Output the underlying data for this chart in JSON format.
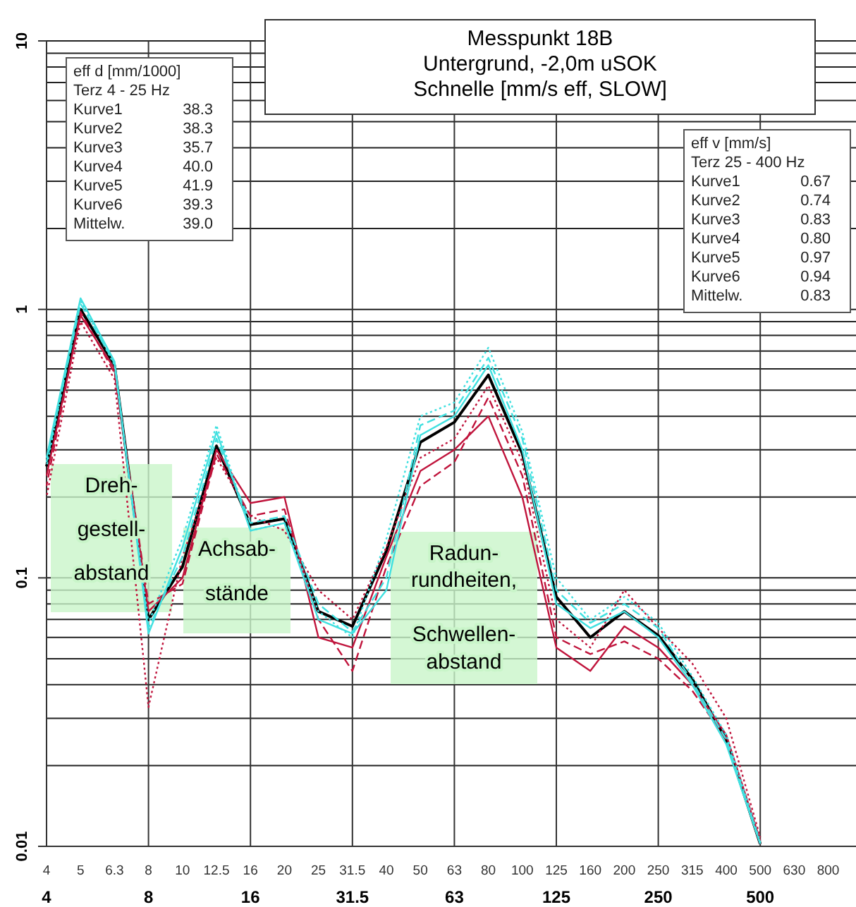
{
  "chart_data": {
    "type": "line",
    "title": "Messpunkt 18B",
    "subtitle": "Untergrund, -2,0m uSOK\nSchnelle [mm/s eff, SLOW]",
    "categories": [
      "4",
      "5",
      "6.3",
      "8",
      "10",
      "12.5",
      "16",
      "20",
      "25",
      "31.5",
      "40",
      "50",
      "63",
      "80",
      "100",
      "125",
      "160",
      "200",
      "250",
      "315",
      "400",
      "500",
      "630",
      "800"
    ],
    "log": "y",
    "ylim": [
      0.01,
      10
    ],
    "yticks": [
      0.01,
      0.1,
      1,
      10
    ],
    "grid": true,
    "marker": "none",
    "series": [
      {
        "color": "#000000",
        "line_style": "solid",
        "values": [
          0.26,
          1.0,
          0.62,
          0.07,
          0.11,
          0.31,
          0.158,
          0.166,
          0.075,
          0.066,
          0.126,
          0.32,
          0.38,
          0.57,
          0.29,
          0.085,
          0.06,
          0.075,
          0.061,
          0.042,
          0.025,
          0.0102,
          null,
          null
        ]
      },
      {
        "color": "#c0143c",
        "line_style": "solid",
        "values": [
          0.24,
          0.95,
          0.6,
          0.075,
          0.1,
          0.3,
          0.19,
          0.2,
          0.06,
          0.055,
          0.12,
          0.25,
          0.3,
          0.4,
          0.2,
          0.055,
          0.045,
          0.066,
          0.055,
          0.04,
          0.026,
          0.0105,
          null,
          null
        ]
      },
      {
        "color": "#c0143c",
        "line_style": "dashed",
        "values": [
          0.22,
          0.98,
          0.58,
          0.08,
          0.095,
          0.29,
          0.17,
          0.18,
          0.07,
          0.045,
          0.11,
          0.22,
          0.27,
          0.47,
          0.24,
          0.06,
          0.052,
          0.058,
          0.05,
          0.038,
          0.025,
          0.0102,
          null,
          null
        ]
      },
      {
        "color": "#c0143c",
        "line_style": "dotted",
        "values": [
          0.2,
          0.9,
          0.55,
          0.033,
          0.12,
          0.28,
          0.17,
          0.15,
          0.09,
          0.07,
          0.13,
          0.28,
          0.33,
          0.52,
          0.27,
          0.07,
          0.055,
          0.09,
          0.065,
          0.048,
          0.03,
          0.0108,
          null,
          null
        ]
      },
      {
        "color": "#40e0e0",
        "line_style": "solid",
        "values": [
          0.28,
          1.1,
          0.64,
          0.062,
          0.13,
          0.35,
          0.15,
          0.16,
          0.07,
          0.062,
          0.09,
          0.34,
          0.4,
          0.62,
          0.3,
          0.08,
          0.065,
          0.075,
          0.06,
          0.04,
          0.024,
          0.0102,
          null,
          null
        ]
      },
      {
        "color": "#40e0e0",
        "line_style": "dashed",
        "values": [
          0.27,
          1.05,
          0.63,
          0.065,
          0.12,
          0.33,
          0.16,
          0.17,
          0.08,
          0.063,
          0.1,
          0.37,
          0.42,
          0.66,
          0.33,
          0.09,
          0.068,
          0.08,
          0.065,
          0.041,
          0.025,
          0.0103,
          null,
          null
        ]
      },
      {
        "color": "#40e0e0",
        "line_style": "dotted",
        "values": [
          0.26,
          1.08,
          0.62,
          0.068,
          0.14,
          0.37,
          0.15,
          0.16,
          0.075,
          0.06,
          0.14,
          0.4,
          0.45,
          0.72,
          0.35,
          0.1,
          0.07,
          0.085,
          0.068,
          0.043,
          0.026,
          0.0104,
          null,
          null
        ]
      }
    ],
    "annotations": [
      "eff d [mm/1000]",
      "Terz 4 - 25 Hz",
      "Kurve1 38.3",
      "Kurve2 38.3",
      "Kurve3 35.7",
      "Kurve4 40.0",
      "Kurve5 41.9",
      "Kurve6 39.3",
      "Mittelw. 39.0",
      "eff v [mm/s]",
      "Terz 25 - 400 Hz",
      "Kurve1 0.67",
      "Kurve2 0.74",
      "Kurve3 0.83",
      "Kurve4 0.80",
      "Kurve5 0.97",
      "Kurve6 0.94",
      "Mittelw. 0.83",
      "Dreh-\ngestell-\nabstand",
      "Achsab-\nstände",
      "Radun-\nrundheiten,\n\nSchwellen-\nabstand",
      "4",
      "8",
      "16",
      "31.5",
      "63",
      "125",
      "250",
      "500"
    ]
  }
}
